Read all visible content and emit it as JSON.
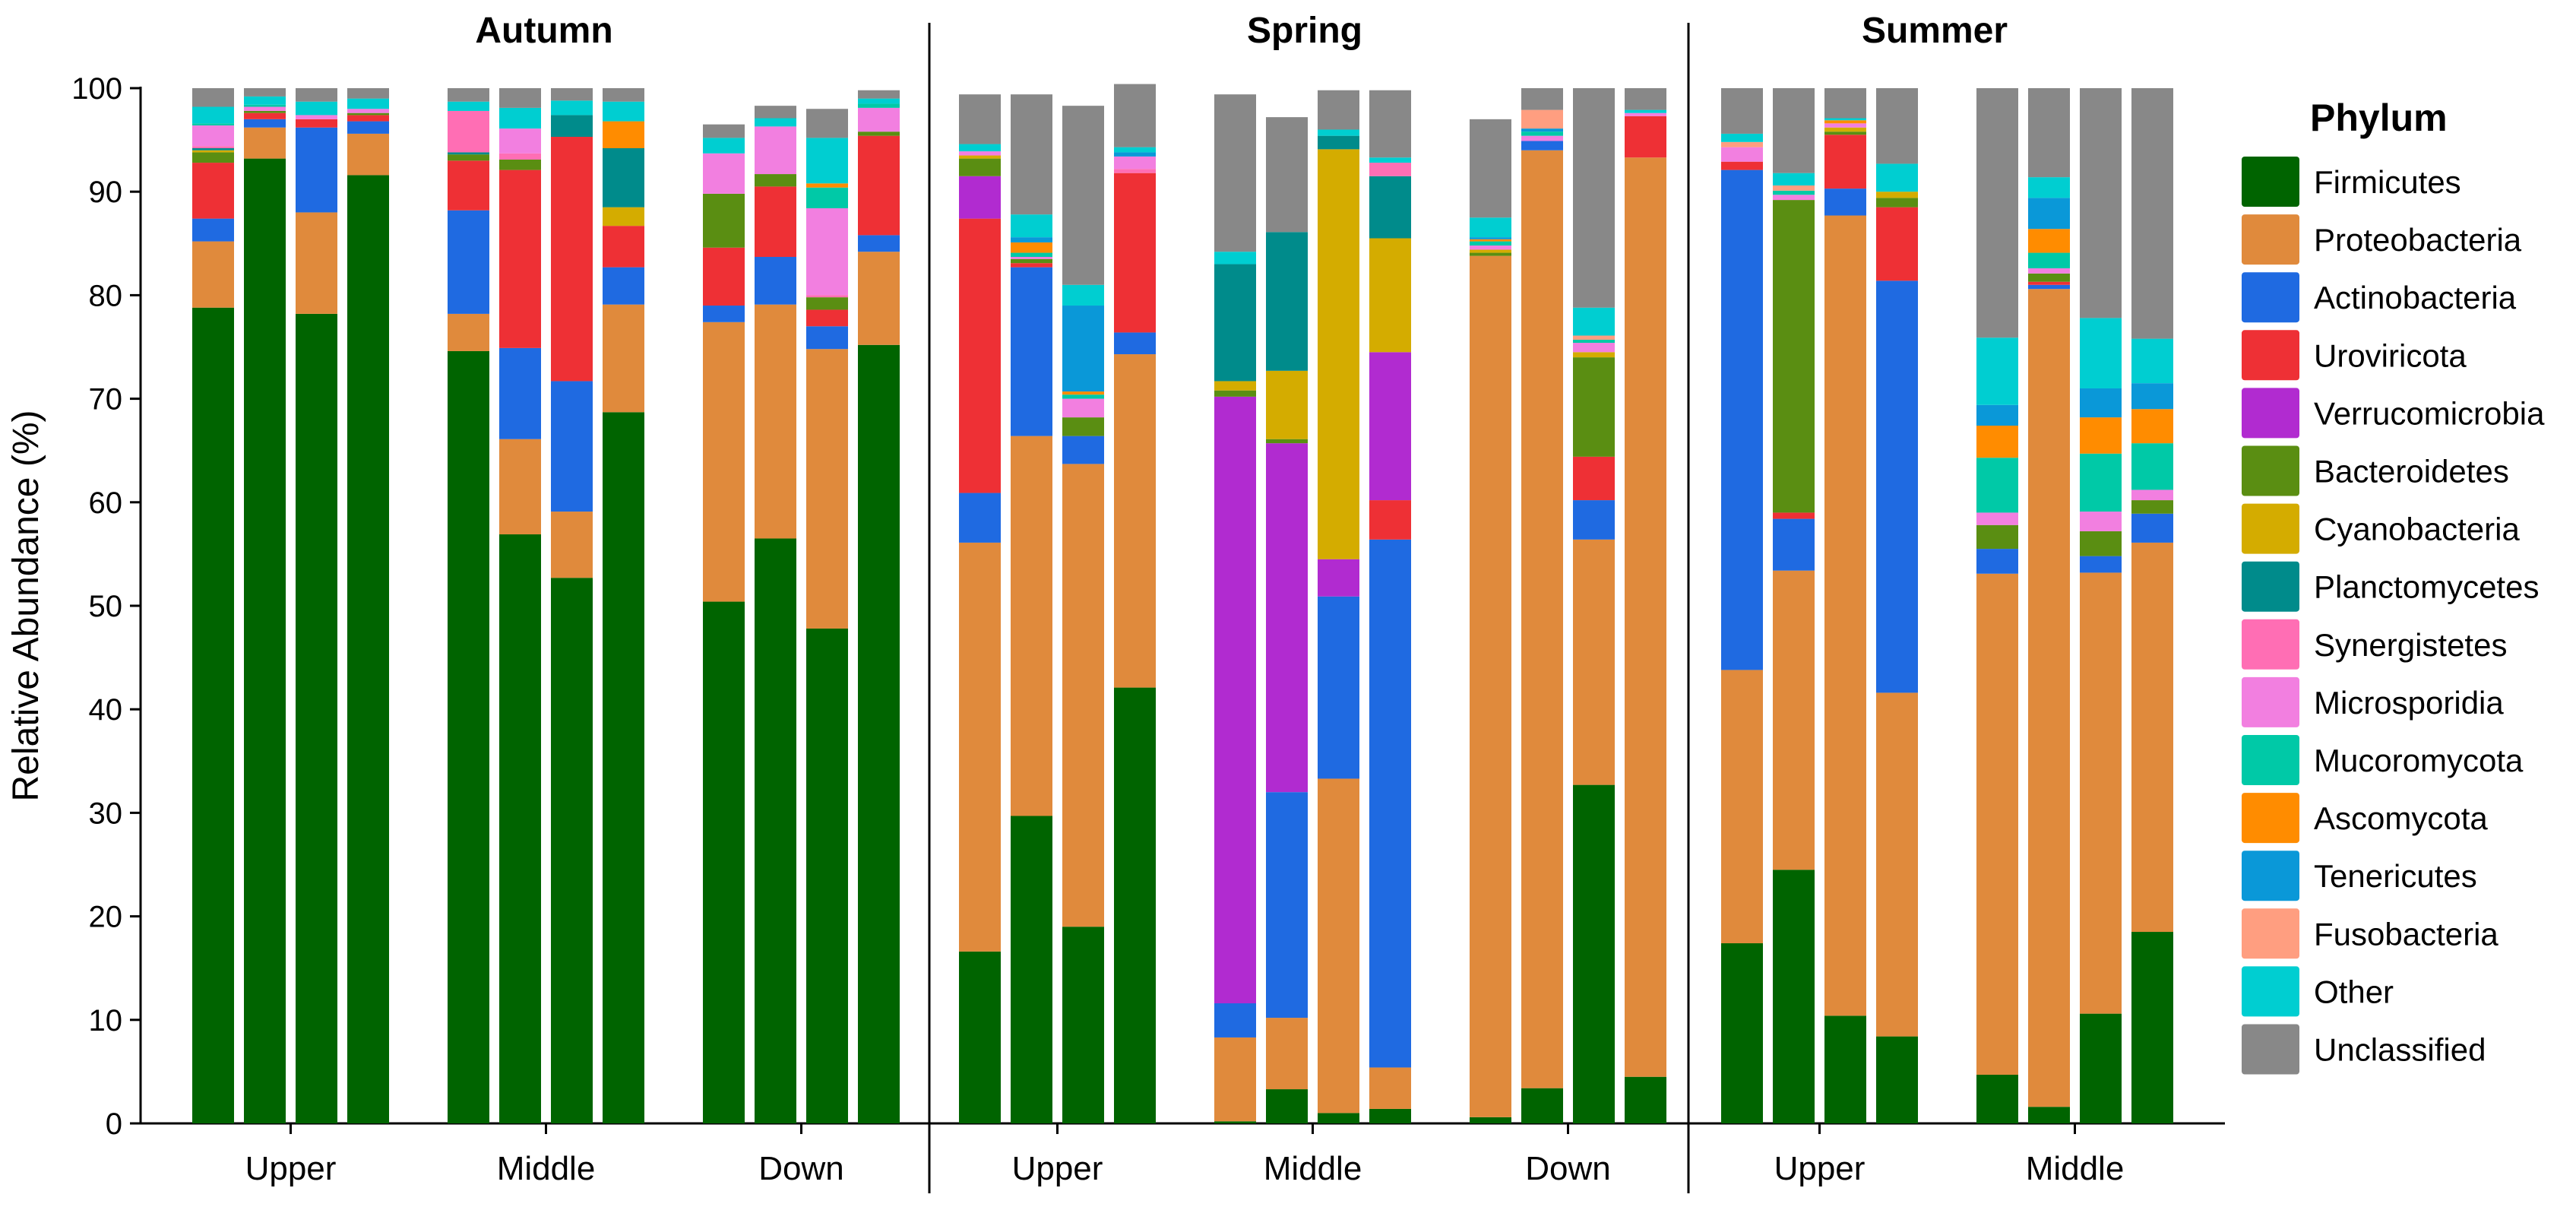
{
  "chart_data": {
    "type": "bar",
    "stacked": true,
    "ylabel": "Relative Abundance (%)",
    "ylim": [
      0,
      100
    ],
    "yticks": [
      0,
      10,
      20,
      30,
      40,
      50,
      60,
      70,
      80,
      90,
      100
    ],
    "legend": {
      "title": "Phylum",
      "placement": "right",
      "entries": [
        "Firmicutes",
        "Proteobacteria",
        "Actinobacteria",
        "Uroviricota",
        "Verrucomicrobia",
        "Bacteroidetes",
        "Cyanobacteria",
        "Planctomycetes",
        "Synergistetes",
        "Microsporidia",
        "Mucoromycota",
        "Ascomycota",
        "Tenericutes",
        "Fusobacteria",
        "Other",
        "Unclassified"
      ]
    },
    "colors": {
      "Firmicutes": "#006400",
      "Proteobacteria": "#E08A3C",
      "Actinobacteria": "#1F6AE1",
      "Uroviricota": "#EE3035",
      "Verrucomicrobia": "#B12BD0",
      "Bacteroidetes": "#5A8E12",
      "Cyanobacteria": "#D4AC00",
      "Planctomycetes": "#008B8B",
      "Synergistetes": "#FF6EB4",
      "Microsporidia": "#F27FE0",
      "Mucoromycota": "#00C9A7",
      "Ascomycota": "#FF8C00",
      "Tenericutes": "#0A98D8",
      "Fusobacteria": "#FF9E80",
      "Other": "#00CED1",
      "Unclassified": "#888888"
    },
    "panels": [
      {
        "title": "Autumn",
        "groups": [
          {
            "label": "Upper",
            "bars": [
              [
                78.8,
                6.4,
                2.2,
                5.4,
                0,
                1.0,
                0.2,
                0.2,
                0.2,
                2.0,
                0.2,
                0,
                0,
                0,
                1.6,
                1.8
              ],
              [
                93.2,
                3.0,
                0.8,
                0.6,
                0,
                0.2,
                0,
                0,
                0,
                0.4,
                0.2,
                0,
                0,
                0,
                0.8,
                0.8
              ],
              [
                78.2,
                9.8,
                8.2,
                0.8,
                0,
                0,
                0,
                0,
                0,
                0.4,
                0,
                0,
                0,
                0,
                1.3,
                1.3
              ],
              [
                91.6,
                4.0,
                1.2,
                0.6,
                0,
                0.2,
                0,
                0,
                0,
                0.4,
                0,
                0,
                0,
                0,
                1.0,
                1.0
              ]
            ]
          },
          {
            "label": "Middle",
            "bars": [
              [
                74.6,
                3.6,
                10.0,
                4.8,
                0,
                0.6,
                0,
                0.2,
                4.0,
                0,
                0,
                0,
                0,
                0,
                0.9,
                1.3
              ],
              [
                56.9,
                9.2,
                8.8,
                17.2,
                0,
                1.0,
                0,
                0,
                0.6,
                2.4,
                0,
                0,
                0,
                0,
                2.0,
                1.9
              ],
              [
                52.7,
                6.4,
                12.6,
                23.6,
                0,
                0,
                0,
                2.1,
                0,
                0,
                0,
                0,
                0,
                0,
                1.4,
                1.2
              ],
              [
                68.7,
                10.4,
                3.6,
                4.0,
                0,
                0,
                1.8,
                5.7,
                0,
                0,
                0,
                2.6,
                0,
                0,
                1.9,
                1.3
              ]
            ]
          },
          {
            "label": "Down",
            "bars": [
              [
                50.4,
                27.0,
                1.6,
                5.6,
                0,
                5.2,
                0,
                0,
                0,
                3.9,
                0,
                0,
                0,
                0,
                1.5,
                1.3
              ],
              [
                56.5,
                22.6,
                4.6,
                6.8,
                0,
                1.2,
                0,
                0,
                0,
                4.6,
                0,
                0,
                0,
                0,
                0.8,
                1.2
              ],
              [
                47.8,
                27.0,
                2.2,
                1.6,
                0,
                1.2,
                0,
                0,
                0.2,
                8.4,
                2.0,
                0.4,
                0,
                0,
                4.4,
                2.8
              ],
              [
                75.2,
                9.0,
                1.6,
                9.6,
                0,
                0.4,
                0,
                0,
                0,
                2.3,
                0.4,
                0,
                0,
                0,
                0.5,
                0.8
              ]
            ]
          }
        ]
      },
      {
        "title": "Spring",
        "groups": [
          {
            "label": "Upper",
            "bars": [
              [
                16.6,
                39.5,
                4.8,
                26.5,
                4.1,
                1.7,
                0.3,
                0,
                0,
                0.4,
                0,
                0,
                0,
                0,
                0.7,
                4.8
              ],
              [
                29.7,
                36.7,
                16.3,
                0.4,
                0,
                0.4,
                0,
                0,
                0,
                0.2,
                0.4,
                1.0,
                0.5,
                0,
                2.2,
                11.6
              ],
              [
                19.0,
                44.7,
                2.7,
                0,
                0,
                1.8,
                0,
                0,
                0,
                1.8,
                0.4,
                0.3,
                8.3,
                0,
                2.0,
                17.3
              ],
              [
                42.1,
                32.2,
                2.1,
                15.4,
                0,
                0,
                0,
                0,
                0.4,
                1.2,
                0,
                0,
                0.4,
                0,
                0.5,
                6.1
              ]
            ]
          },
          {
            "label": "Middle",
            "bars": [
              [
                0.2,
                8.1,
                3.3,
                0,
                58.6,
                0.6,
                0.9,
                11.3,
                0,
                0,
                0,
                0,
                0,
                0,
                1.2,
                15.2
              ],
              [
                3.3,
                6.9,
                21.8,
                0,
                33.7,
                0.4,
                6.6,
                13.4,
                0,
                0,
                0,
                0,
                0,
                0,
                0,
                11.1
              ],
              [
                1.0,
                32.3,
                17.6,
                0,
                3.6,
                0,
                39.6,
                1.3,
                0,
                0,
                0,
                0,
                0,
                0,
                0.6,
                3.8
              ],
              [
                1.4,
                4.0,
                51.0,
                3.8,
                14.3,
                0,
                11.0,
                6.0,
                1.3,
                0,
                0,
                0,
                0,
                0,
                0.5,
                6.5
              ]
            ]
          },
          {
            "label": "Down",
            "bars": [
              [
                0.6,
                83.2,
                0,
                0,
                0,
                0.3,
                0.3,
                0,
                0,
                0.4,
                0.4,
                0.2,
                0.2,
                0,
                1.9,
                9.5
              ],
              [
                3.4,
                90.6,
                0.9,
                0,
                0,
                0,
                0,
                0,
                0,
                0.5,
                0.4,
                0,
                0.3,
                1.8,
                0,
                2.1
              ],
              [
                32.7,
                23.7,
                3.8,
                4.2,
                0,
                9.6,
                0.5,
                0,
                0,
                0.9,
                0.3,
                0,
                0,
                0.4,
                2.7,
                21.2
              ],
              [
                4.5,
                88.8,
                0,
                4.0,
                0,
                0,
                0,
                0,
                0,
                0.3,
                0,
                0,
                0,
                0,
                0.3,
                2.1
              ]
            ]
          }
        ]
      },
      {
        "title": "Summer",
        "groups": [
          {
            "label": "Upper",
            "bars": [
              [
                17.4,
                26.4,
                48.3,
                0.8,
                0,
                0,
                0,
                0,
                0,
                1.4,
                0,
                0,
                0,
                0.5,
                0.8,
                4.4
              ],
              [
                24.5,
                28.9,
                5.0,
                0.6,
                0,
                30.2,
                0,
                0,
                0,
                0.5,
                0.4,
                0,
                0,
                0.5,
                1.2,
                8.2
              ],
              [
                10.4,
                77.3,
                2.6,
                5.2,
                0,
                0.3,
                0.4,
                0,
                0,
                0.4,
                0,
                0.3,
                0,
                0,
                0.2,
                2.9
              ],
              [
                8.4,
                33.2,
                39.8,
                7.1,
                0,
                0.9,
                0.6,
                0,
                0,
                0,
                0,
                0,
                0,
                0,
                2.7,
                7.3
              ]
            ]
          },
          {
            "label": "Middle",
            "bars": [
              [
                4.7,
                48.4,
                2.4,
                0,
                0,
                2.3,
                0,
                0,
                0,
                1.2,
                5.3,
                3.1,
                2.0,
                0,
                6.5,
                24.1
              ],
              [
                1.6,
                79.0,
                0.4,
                0.3,
                0,
                0.8,
                0,
                0,
                0,
                0.5,
                1.5,
                2.3,
                3.0,
                0,
                2.0,
                8.6
              ],
              [
                10.6,
                42.6,
                1.6,
                0,
                0,
                2.4,
                0,
                0,
                0,
                1.9,
                5.6,
                3.5,
                2.8,
                0,
                6.8,
                22.2
              ],
              [
                18.5,
                37.6,
                2.8,
                0,
                0,
                1.3,
                0,
                0,
                0,
                1.0,
                4.5,
                3.3,
                2.5,
                0,
                4.3,
                24.2
              ]
            ]
          }
        ]
      }
    ]
  }
}
